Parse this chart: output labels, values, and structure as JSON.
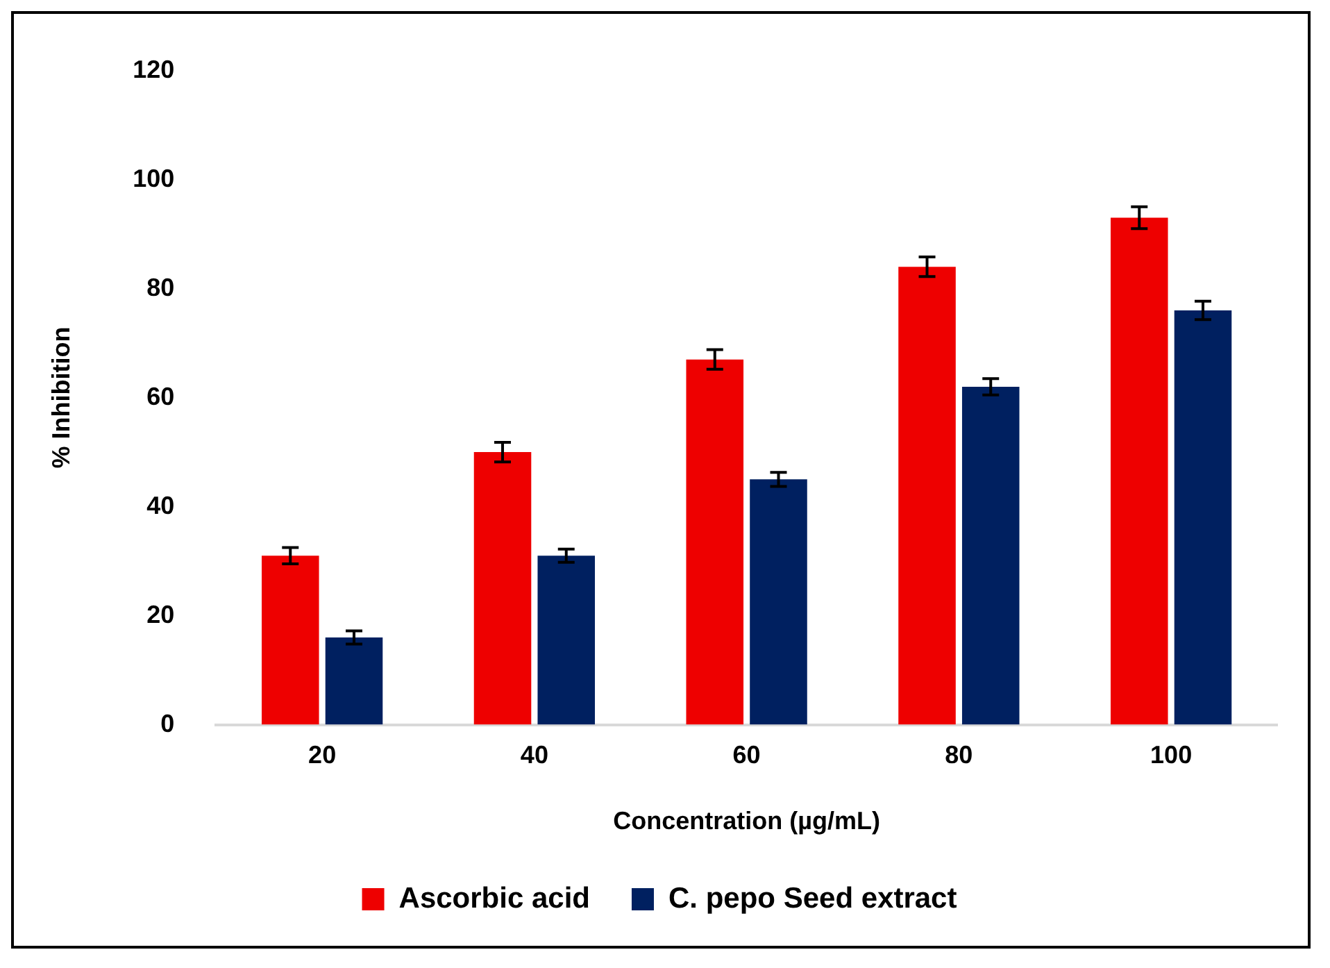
{
  "chart_data": {
    "type": "bar",
    "xlabel": "Concentration (µg/mL)",
    "ylabel": "% Inhibition",
    "categories": [
      "20",
      "40",
      "60",
      "80",
      "100"
    ],
    "series": [
      {
        "name": "Ascorbic acid",
        "color": "#ee0000",
        "values": [
          31,
          50,
          67,
          84,
          93
        ],
        "errors": [
          1.5,
          1.8,
          1.8,
          1.8,
          2
        ]
      },
      {
        "name": "C. pepo Seed extract",
        "color": "#002060",
        "values": [
          16,
          31,
          45,
          62,
          76
        ],
        "errors": [
          1.2,
          1.2,
          1.3,
          1.5,
          1.7
        ]
      }
    ],
    "ylim": [
      0,
      120
    ],
    "yticks": [
      0,
      20,
      40,
      60,
      80,
      100,
      120
    ],
    "grid": false,
    "legend": "bottom"
  }
}
